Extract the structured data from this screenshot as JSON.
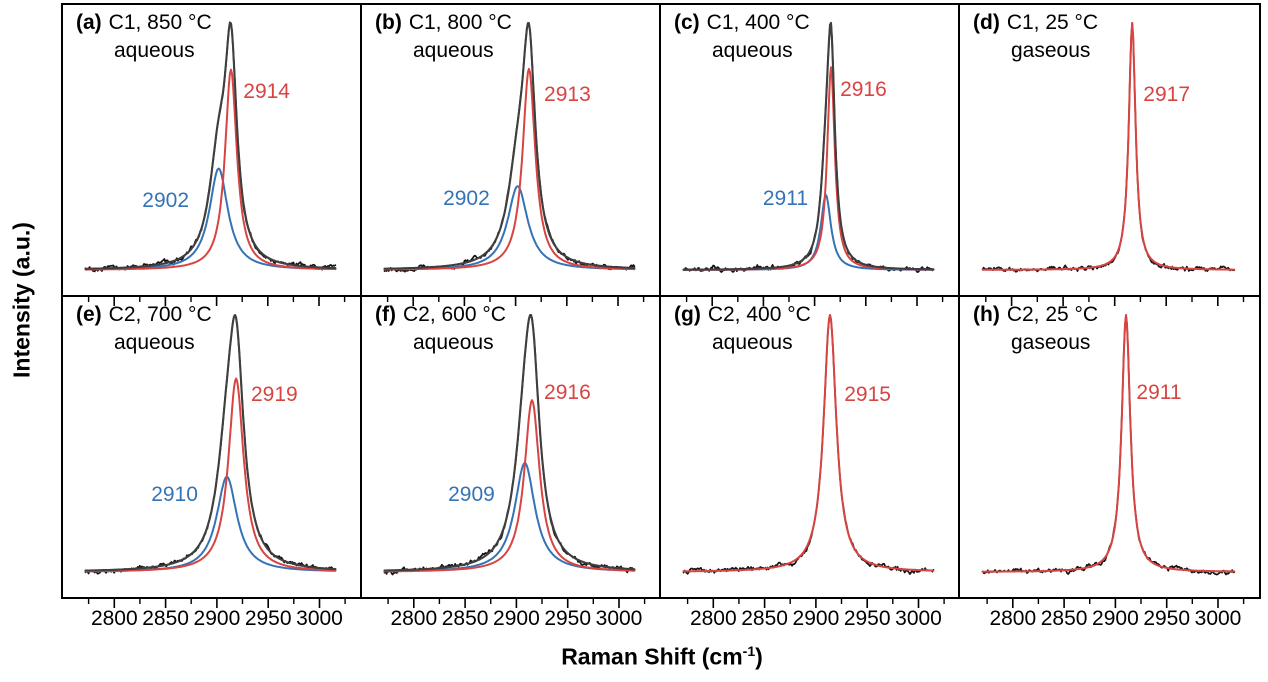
{
  "figure": {
    "y_axis": {
      "title": "Intensity (a.u.)"
    },
    "x_axis": {
      "title_pre": "Raman Shift (cm",
      "title_sup": "-1",
      "title_post": ")",
      "range": [
        2750,
        3040
      ],
      "curve_range": [
        2772,
        3016
      ],
      "major_ticks": [
        2800,
        2850,
        2900,
        2950,
        3000
      ],
      "minor_step": 25
    },
    "colors": {
      "experimental": "#141414",
      "fit_sum": "#3f3f3f",
      "component_red": "#d84442",
      "component_blue": "#3473b5",
      "border": "#000000"
    },
    "legend": "none",
    "grid_lines": "off"
  },
  "chart_data": [
    {
      "id": "a",
      "type": "line",
      "label": "(a)",
      "condition": "C1, 850 °C",
      "phase": "aqueous",
      "peaks": [
        {
          "name": "component-red",
          "center": 2914,
          "label": "2914",
          "amplitude": 0.75,
          "hwhm": 7,
          "label_fx": 0.607,
          "label_fy": 0.3
        },
        {
          "name": "component-blue",
          "center": 2902,
          "label": "2902",
          "amplitude": 0.38,
          "hwhm": 11,
          "label_fx": 0.267,
          "label_fy": 0.676
        }
      ],
      "curves": [
        "experimental",
        "component-blue",
        "component-red",
        "fit-sum"
      ]
    },
    {
      "id": "b",
      "type": "line",
      "label": "(b)",
      "condition": "C1, 800 °C",
      "phase": "aqueous",
      "peaks": [
        {
          "name": "component-red",
          "center": 2913,
          "label": "2913",
          "amplitude": 0.72,
          "hwhm": 7.5,
          "label_fx": 0.613,
          "label_fy": 0.31
        },
        {
          "name": "component-blue",
          "center": 2902,
          "label": "2902",
          "amplitude": 0.3,
          "hwhm": 12,
          "label_fx": 0.273,
          "label_fy": 0.67
        }
      ],
      "curves": [
        "experimental",
        "component-blue",
        "component-red",
        "fit-sum"
      ]
    },
    {
      "id": "c",
      "type": "line",
      "label": "(c)",
      "condition": "C1, 400 °C",
      "phase": "aqueous",
      "peaks": [
        {
          "name": "component-red",
          "center": 2916,
          "label": "2916",
          "amplitude": 0.73,
          "hwhm": 4.5,
          "label_fx": 0.603,
          "label_fy": 0.293
        },
        {
          "name": "component-blue",
          "center": 2911,
          "label": "2911",
          "amplitude": 0.27,
          "hwhm": 6,
          "label_fx": 0.343,
          "label_fy": 0.669
        }
      ],
      "curves": [
        "experimental",
        "component-blue",
        "component-red",
        "fit-sum"
      ]
    },
    {
      "id": "d",
      "type": "line",
      "label": "(d)",
      "condition": "C1, 25 °C",
      "phase": "gaseous",
      "peaks": [
        {
          "name": "component-red",
          "center": 2917,
          "label": "2917",
          "amplitude": 1.0,
          "hwhm": 4,
          "label_fx": 0.613,
          "label_fy": 0.31
        }
      ],
      "curves": [
        "experimental",
        "component-red"
      ]
    },
    {
      "id": "e",
      "type": "line",
      "label": "(e)",
      "condition": "C2, 700 °C",
      "phase": "aqueous",
      "peaks": [
        {
          "name": "component-red",
          "center": 2919,
          "label": "2919",
          "amplitude": 0.67,
          "hwhm": 9,
          "label_fx": 0.633,
          "label_fy": 0.327
        },
        {
          "name": "component-blue",
          "center": 2910,
          "label": "2910",
          "amplitude": 0.33,
          "hwhm": 12,
          "label_fx": 0.297,
          "label_fy": 0.66
        }
      ],
      "curves": [
        "experimental",
        "component-blue",
        "component-red",
        "fit-sum"
      ]
    },
    {
      "id": "f",
      "type": "line",
      "label": "(f)",
      "condition": "C2, 600 °C",
      "phase": "aqueous",
      "peaks": [
        {
          "name": "component-red",
          "center": 2916,
          "label": "2916",
          "amplitude": 0.63,
          "hwhm": 9,
          "label_fx": 0.613,
          "label_fy": 0.32
        },
        {
          "name": "component-blue",
          "center": 2909,
          "label": "2909",
          "amplitude": 0.4,
          "hwhm": 12,
          "label_fx": 0.29,
          "label_fy": 0.66
        }
      ],
      "curves": [
        "experimental",
        "component-blue",
        "component-red",
        "fit-sum"
      ]
    },
    {
      "id": "g",
      "type": "line",
      "label": "(g)",
      "condition": "C2, 400 °C",
      "phase": "aqueous",
      "peaks": [
        {
          "name": "component-red",
          "center": 2915,
          "label": "2915",
          "amplitude": 1.0,
          "hwhm": 7.5,
          "label_fx": 0.617,
          "label_fy": 0.327
        }
      ],
      "curves": [
        "experimental",
        "component-red"
      ]
    },
    {
      "id": "h",
      "type": "line",
      "label": "(h)",
      "condition": "C2, 25 °C",
      "phase": "gaseous",
      "peaks": [
        {
          "name": "component-red",
          "center": 2911,
          "label": "2911",
          "amplitude": 1.0,
          "hwhm": 5,
          "label_fx": 0.59,
          "label_fy": 0.32
        }
      ],
      "curves": [
        "experimental",
        "component-red"
      ]
    }
  ]
}
